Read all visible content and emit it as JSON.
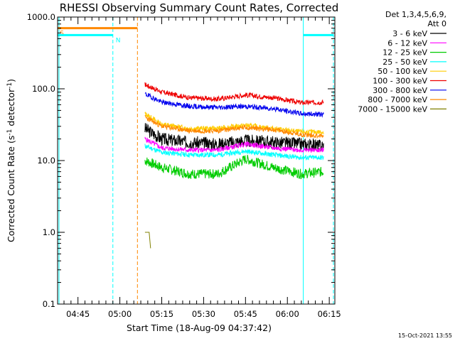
{
  "chart_data": {
    "type": "line",
    "title": "RHESSI Observing Summary Count Rates, Corrected",
    "xlabel": "Start Time (18-Aug-09 04:37:42)",
    "ylabel_parts": {
      "pre": "Corrected Count Rate (s",
      "sup": "-1",
      "post": " detector",
      "sup2": "-1",
      "end": ")"
    },
    "y_scale": "log",
    "ylim": [
      0.1,
      1000
    ],
    "x_range_minutes": [
      "04:37:42",
      "06:17:00"
    ],
    "x_ticks": [
      {
        "label": "04:45",
        "t": 45
      },
      {
        "label": "05:00",
        "t": 60
      },
      {
        "label": "05:15",
        "t": 75
      },
      {
        "label": "05:30",
        "t": 90
      },
      {
        "label": "05:45",
        "t": 105
      },
      {
        "label": "06:00",
        "t": 120
      },
      {
        "label": "06:15",
        "t": 135
      }
    ],
    "y_ticks": [
      {
        "label": "1000.0",
        "v": 1000
      },
      {
        "label": "100.0",
        "v": 100
      },
      {
        "label": "10.0",
        "v": 10
      },
      {
        "label": "1.0",
        "v": 1
      },
      {
        "label": "0.1",
        "v": 0.1
      }
    ],
    "legend_header": [
      "Det 1,3,4,5,6,9,",
      "Att 0"
    ],
    "series": [
      {
        "name": "3 - 6 keV",
        "color": "#000000",
        "seed": 3,
        "values": [
          [
            69,
            28
          ],
          [
            75,
            20
          ],
          [
            85,
            18
          ],
          [
            95,
            17
          ],
          [
            105,
            19
          ],
          [
            115,
            18
          ],
          [
            125,
            17
          ],
          [
            133,
            16
          ]
        ]
      },
      {
        "name": "6 - 12 keV",
        "color": "#ff00ff",
        "seed": 5,
        "values": [
          [
            69,
            20
          ],
          [
            75,
            15
          ],
          [
            85,
            14
          ],
          [
            95,
            14
          ],
          [
            105,
            17
          ],
          [
            115,
            15
          ],
          [
            125,
            14
          ],
          [
            133,
            14
          ]
        ]
      },
      {
        "name": "12 - 25 keV",
        "color": "#00cc00",
        "seed": 7,
        "values": [
          [
            69,
            10
          ],
          [
            75,
            8
          ],
          [
            85,
            6.5
          ],
          [
            95,
            6.5
          ],
          [
            105,
            10.5
          ],
          [
            115,
            8
          ],
          [
            125,
            6.5
          ],
          [
            133,
            7
          ]
        ]
      },
      {
        "name": "25 - 50 keV",
        "color": "#00ffff",
        "seed": 11,
        "values": [
          [
            69,
            16
          ],
          [
            75,
            13
          ],
          [
            85,
            12
          ],
          [
            95,
            12
          ],
          [
            105,
            13.5
          ],
          [
            115,
            12
          ],
          [
            125,
            11
          ],
          [
            133,
            11
          ]
        ]
      },
      {
        "name": "50 - 100 keV",
        "color": "#ffcc00",
        "seed": 13,
        "values": [
          [
            69,
            45
          ],
          [
            75,
            32
          ],
          [
            85,
            28
          ],
          [
            95,
            28
          ],
          [
            105,
            31
          ],
          [
            115,
            28
          ],
          [
            125,
            25
          ],
          [
            133,
            25
          ]
        ]
      },
      {
        "name": "100 - 300 keV",
        "color": "#ee0000",
        "seed": 17,
        "values": [
          [
            69,
            115
          ],
          [
            75,
            90
          ],
          [
            85,
            75
          ],
          [
            95,
            72
          ],
          [
            105,
            82
          ],
          [
            115,
            75
          ],
          [
            125,
            64
          ],
          [
            133,
            65
          ]
        ]
      },
      {
        "name": "300 - 800 keV",
        "color": "#0000ee",
        "seed": 19,
        "values": [
          [
            69,
            85
          ],
          [
            75,
            65
          ],
          [
            85,
            57
          ],
          [
            95,
            55
          ],
          [
            105,
            57
          ],
          [
            115,
            53
          ],
          [
            125,
            45
          ],
          [
            133,
            44
          ]
        ]
      },
      {
        "name": "800 - 7000 keV",
        "color": "#ff8800",
        "seed": 23,
        "values": [
          [
            69,
            40
          ],
          [
            75,
            30
          ],
          [
            85,
            26
          ],
          [
            95,
            26
          ],
          [
            105,
            29
          ],
          [
            115,
            27
          ],
          [
            125,
            23
          ],
          [
            133,
            22
          ]
        ]
      },
      {
        "name": "7000 - 15000 keV",
        "color": "#808000",
        "seed": 29,
        "values": [
          [
            69,
            1.0
          ],
          [
            70.5,
            1.0
          ],
          [
            71,
            0.6
          ]
        ]
      }
    ],
    "flags": [
      {
        "name": "S",
        "color": "#ff8800",
        "value": 700,
        "segments": [
          [
            37.7,
            66.3
          ]
        ],
        "label_t": 38.5
      },
      {
        "name": "N",
        "color": "#00ffff",
        "value": 560,
        "segments": [
          [
            37.7,
            57.5
          ],
          [
            125.7,
            136.5
          ]
        ],
        "label_t": 58.5
      }
    ],
    "vlines": [
      {
        "t": 38.2,
        "color": "#00ffff",
        "style": "solid"
      },
      {
        "t": 57.5,
        "color": "#00ffff",
        "style": "dashed"
      },
      {
        "t": 66.3,
        "color": "#ff8800",
        "style": "dashed"
      },
      {
        "t": 125.7,
        "color": "#00ffff",
        "style": "solid"
      },
      {
        "t": 136.5,
        "color": "#00ffff",
        "style": "dashed"
      }
    ]
  },
  "timestamp": "15-Oct-2021 13:55"
}
